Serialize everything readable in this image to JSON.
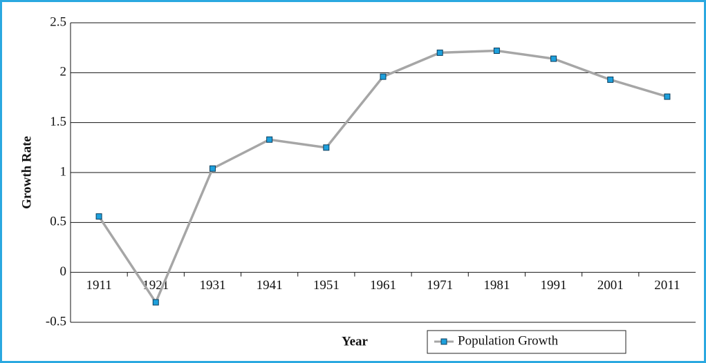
{
  "chart_data": {
    "type": "line",
    "categories": [
      "1911",
      "1921",
      "1931",
      "1941",
      "1951",
      "1961",
      "1971",
      "1981",
      "1991",
      "2001",
      "2011"
    ],
    "series": [
      {
        "name": "Population Growth",
        "color": "#a6a6a6",
        "marker_color": "#1ea0dc",
        "values": [
          0.56,
          -0.3,
          1.04,
          1.33,
          1.25,
          1.96,
          2.2,
          2.22,
          2.14,
          1.93,
          1.76
        ]
      }
    ],
    "x_label": "Year",
    "y_label": "Growth Rate",
    "ylim": [
      -0.5,
      2.5
    ],
    "yticks": [
      2.5,
      2,
      1.5,
      1,
      0.5,
      0,
      -0.5
    ],
    "grid": true,
    "legend": "bottom"
  }
}
